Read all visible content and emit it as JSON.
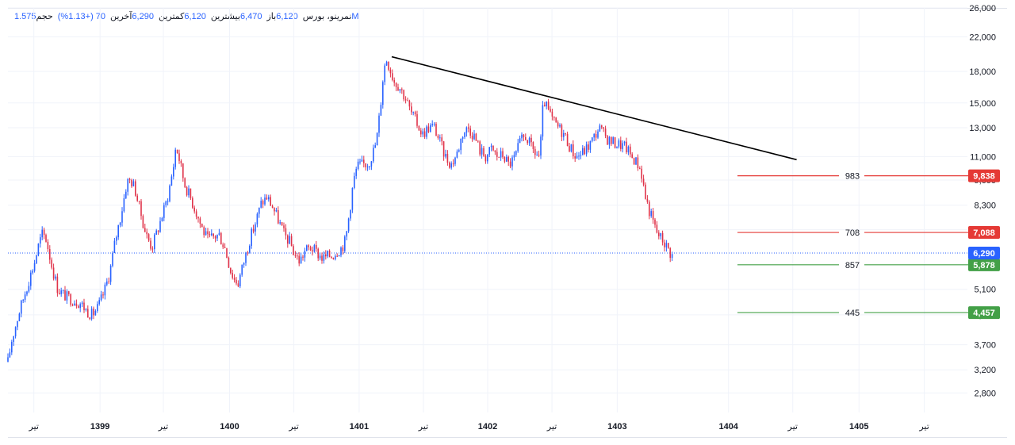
{
  "header": {
    "symbol": "نمرینو، بورس",
    "open_label": "باز",
    "open_value": "6,120",
    "high_label": "بیشترین",
    "high_value": "6,470",
    "low_label": "کمترین",
    "low_value": "6,120",
    "close_label": "آخرین",
    "close_value": "6,290",
    "change": "70  (+1.13%)",
    "volume_label": "حجم",
    "volume_value": "1.575M"
  },
  "colors": {
    "up": "#2962ff",
    "down": "#e0334a",
    "resistance": "#e53935",
    "support": "#43a047",
    "last_price": "#2962ff",
    "trendline": "#000000",
    "grid": "#f0f3fa",
    "axis_text": "#131722"
  },
  "chart_data": {
    "type": "candlestick",
    "y_scale": "log",
    "ylim": [
      2500,
      26000
    ],
    "y_ticks": [
      {
        "value": 26000,
        "label": "26,000"
      },
      {
        "value": 22000,
        "label": "22,000"
      },
      {
        "value": 18000,
        "label": "18,000"
      },
      {
        "value": 15000,
        "label": "15,000"
      },
      {
        "value": 13000,
        "label": "13,000"
      },
      {
        "value": 11000,
        "label": "11,000"
      },
      {
        "value": 9600,
        "label": "9,600"
      },
      {
        "value": 8300,
        "label": "8,300"
      },
      {
        "value": 7200,
        "label": "7,200"
      },
      {
        "value": 5100,
        "label": "5,100"
      },
      {
        "value": 4400,
        "label": "4,400"
      },
      {
        "value": 3700,
        "label": "3,700"
      },
      {
        "value": 3200,
        "label": "3,200"
      },
      {
        "value": 2800,
        "label": "2,800"
      }
    ],
    "x_ticks": [
      {
        "pos": 0.027,
        "label": "تیر",
        "bold": false
      },
      {
        "pos": 0.096,
        "label": "1399",
        "bold": true
      },
      {
        "pos": 0.162,
        "label": "تیر",
        "bold": false
      },
      {
        "pos": 0.231,
        "label": "1400",
        "bold": true
      },
      {
        "pos": 0.298,
        "label": "تیر",
        "bold": false
      },
      {
        "pos": 0.366,
        "label": "1401",
        "bold": true
      },
      {
        "pos": 0.433,
        "label": "تیر",
        "bold": false
      },
      {
        "pos": 0.5,
        "label": "1402",
        "bold": true
      },
      {
        "pos": 0.567,
        "label": "تیر",
        "bold": false
      },
      {
        "pos": 0.635,
        "label": "1403",
        "bold": true
      },
      {
        "pos": 0.751,
        "label": "1404",
        "bold": true
      },
      {
        "pos": 0.818,
        "label": "تیر",
        "bold": false
      },
      {
        "pos": 0.887,
        "label": "1405",
        "bold": true
      },
      {
        "pos": 0.955,
        "label": "تیر",
        "bold": false
      }
    ],
    "price_path": [
      [
        0.0,
        3350
      ],
      [
        0.004,
        3800
      ],
      [
        0.012,
        4500
      ],
      [
        0.02,
        5200
      ],
      [
        0.028,
        6000
      ],
      [
        0.032,
        6600
      ],
      [
        0.036,
        7050
      ],
      [
        0.04,
        6800
      ],
      [
        0.046,
        5800
      ],
      [
        0.052,
        5100
      ],
      [
        0.06,
        4900
      ],
      [
        0.068,
        4800
      ],
      [
        0.076,
        4700
      ],
      [
        0.082,
        4500
      ],
      [
        0.088,
        4400
      ],
      [
        0.094,
        4600
      ],
      [
        0.1,
        5000
      ],
      [
        0.106,
        5600
      ],
      [
        0.112,
        6800
      ],
      [
        0.118,
        7900
      ],
      [
        0.124,
        9500
      ],
      [
        0.128,
        9600
      ],
      [
        0.132,
        9200
      ],
      [
        0.138,
        8000
      ],
      [
        0.144,
        7000
      ],
      [
        0.15,
        6500
      ],
      [
        0.156,
        7200
      ],
      [
        0.162,
        8000
      ],
      [
        0.166,
        8600
      ],
      [
        0.172,
        10200
      ],
      [
        0.175,
        11700
      ],
      [
        0.178,
        11000
      ],
      [
        0.184,
        9400
      ],
      [
        0.19,
        8700
      ],
      [
        0.196,
        8000
      ],
      [
        0.202,
        7300
      ],
      [
        0.208,
        6800
      ],
      [
        0.214,
        6900
      ],
      [
        0.22,
        7000
      ],
      [
        0.226,
        6500
      ],
      [
        0.232,
        5700
      ],
      [
        0.236,
        5400
      ],
      [
        0.24,
        5300
      ],
      [
        0.246,
        6000
      ],
      [
        0.252,
        6800
      ],
      [
        0.258,
        7500
      ],
      [
        0.264,
        8400
      ],
      [
        0.27,
        8700
      ],
      [
        0.276,
        8200
      ],
      [
        0.282,
        7600
      ],
      [
        0.288,
        7000
      ],
      [
        0.294,
        6700
      ],
      [
        0.298,
        6300
      ],
      [
        0.304,
        6000
      ],
      [
        0.31,
        6400
      ],
      [
        0.316,
        6500
      ],
      [
        0.322,
        6300
      ],
      [
        0.328,
        6100
      ],
      [
        0.334,
        6200
      ],
      [
        0.338,
        6200
      ],
      [
        0.344,
        6400
      ],
      [
        0.348,
        6500
      ],
      [
        0.352,
        6800
      ],
      [
        0.356,
        8000
      ],
      [
        0.36,
        9500
      ],
      [
        0.364,
        10400
      ],
      [
        0.37,
        10500
      ],
      [
        0.376,
        10600
      ],
      [
        0.38,
        11200
      ],
      [
        0.384,
        12000
      ],
      [
        0.388,
        14500
      ],
      [
        0.391,
        17500
      ],
      [
        0.394,
        19500
      ],
      [
        0.398,
        18400
      ],
      [
        0.402,
        17100
      ],
      [
        0.408,
        16500
      ],
      [
        0.414,
        15500
      ],
      [
        0.42,
        14200
      ],
      [
        0.426,
        13400
      ],
      [
        0.432,
        12500
      ],
      [
        0.438,
        13000
      ],
      [
        0.444,
        13100
      ],
      [
        0.45,
        12000
      ],
      [
        0.456,
        11000
      ],
      [
        0.462,
        10500
      ],
      [
        0.468,
        11200
      ],
      [
        0.474,
        12600
      ],
      [
        0.48,
        13000
      ],
      [
        0.486,
        12400
      ],
      [
        0.492,
        11400
      ],
      [
        0.498,
        11000
      ],
      [
        0.504,
        11500
      ],
      [
        0.51,
        11000
      ],
      [
        0.516,
        11100
      ],
      [
        0.522,
        10500
      ],
      [
        0.528,
        10900
      ],
      [
        0.534,
        12000
      ],
      [
        0.54,
        12400
      ],
      [
        0.546,
        11500
      ],
      [
        0.55,
        11200
      ],
      [
        0.554,
        11000
      ],
      [
        0.556,
        12500
      ],
      [
        0.558,
        15300
      ],
      [
        0.562,
        14500
      ],
      [
        0.568,
        13500
      ],
      [
        0.574,
        13000
      ],
      [
        0.58,
        12500
      ],
      [
        0.586,
        11600
      ],
      [
        0.592,
        11000
      ],
      [
        0.598,
        11200
      ],
      [
        0.604,
        11600
      ],
      [
        0.61,
        12200
      ],
      [
        0.616,
        13000
      ],
      [
        0.62,
        12600
      ],
      [
        0.626,
        12100
      ],
      [
        0.632,
        11900
      ],
      [
        0.638,
        11800
      ],
      [
        0.644,
        11600
      ],
      [
        0.65,
        11000
      ],
      [
        0.656,
        10600
      ],
      [
        0.66,
        10100
      ],
      [
        0.664,
        8800
      ],
      [
        0.668,
        8100
      ],
      [
        0.672,
        7600
      ],
      [
        0.676,
        7100
      ],
      [
        0.68,
        6900
      ],
      [
        0.684,
        6700
      ],
      [
        0.688,
        6450
      ],
      [
        0.692,
        6200
      ],
      [
        0.694,
        6290
      ]
    ],
    "last_price": 6290,
    "trendline": {
      "from": [
        0.4,
        19600
      ],
      "to": [
        0.822,
        10800
      ]
    },
    "levels": [
      {
        "value": 9838,
        "label": "9,838",
        "diff": "983",
        "kind": "resistance"
      },
      {
        "value": 7088,
        "label": "7,088",
        "diff": "708",
        "kind": "resistance"
      },
      {
        "value": 5878,
        "label": "5,878",
        "diff": "857",
        "kind": "support"
      },
      {
        "value": 4457,
        "label": "4,457",
        "diff": "445",
        "kind": "support"
      }
    ],
    "last_price_label": "6,290"
  }
}
